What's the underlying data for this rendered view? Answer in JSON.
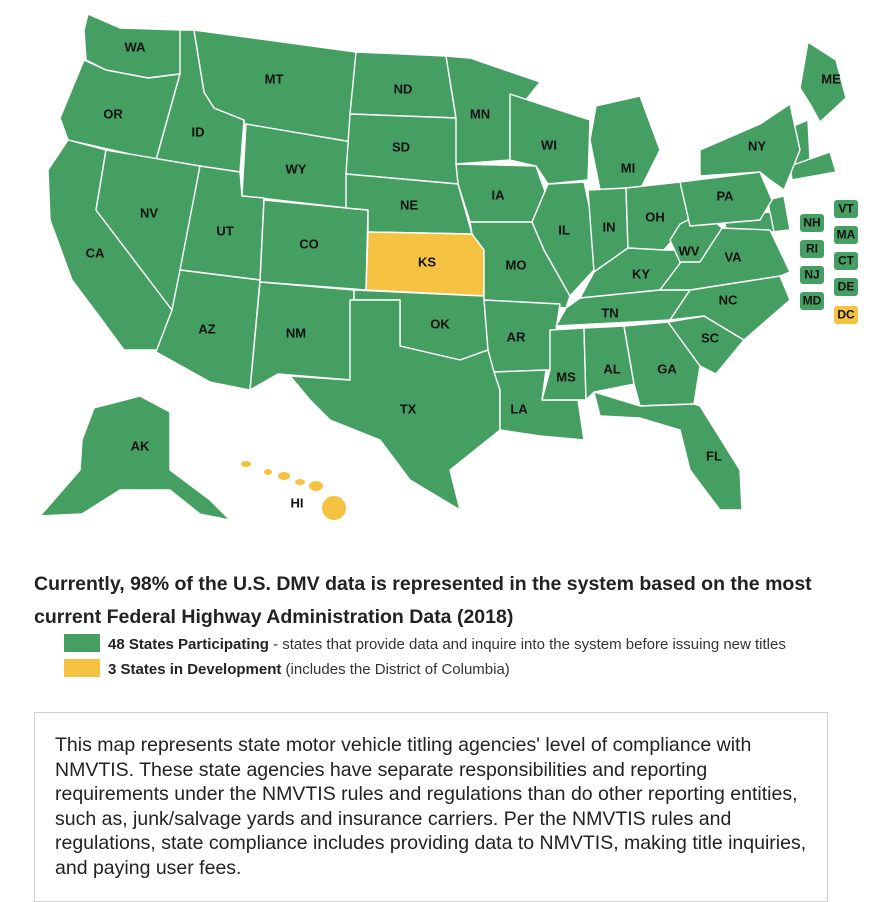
{
  "colors": {
    "participating": "#469f62",
    "development": "#f5c242",
    "border": "#ffffff"
  },
  "map": {
    "states": [
      {
        "code": "WA",
        "status": "participating"
      },
      {
        "code": "OR",
        "status": "participating"
      },
      {
        "code": "CA",
        "status": "participating"
      },
      {
        "code": "ID",
        "status": "participating"
      },
      {
        "code": "NV",
        "status": "participating"
      },
      {
        "code": "MT",
        "status": "participating"
      },
      {
        "code": "WY",
        "status": "participating"
      },
      {
        "code": "UT",
        "status": "participating"
      },
      {
        "code": "AZ",
        "status": "participating"
      },
      {
        "code": "CO",
        "status": "participating"
      },
      {
        "code": "NM",
        "status": "participating"
      },
      {
        "code": "ND",
        "status": "participating"
      },
      {
        "code": "SD",
        "status": "participating"
      },
      {
        "code": "NE",
        "status": "participating"
      },
      {
        "code": "KS",
        "status": "development"
      },
      {
        "code": "OK",
        "status": "participating"
      },
      {
        "code": "TX",
        "status": "participating"
      },
      {
        "code": "MN",
        "status": "participating"
      },
      {
        "code": "IA",
        "status": "participating"
      },
      {
        "code": "MO",
        "status": "participating"
      },
      {
        "code": "AR",
        "status": "participating"
      },
      {
        "code": "LA",
        "status": "participating"
      },
      {
        "code": "WI",
        "status": "participating"
      },
      {
        "code": "IL",
        "status": "participating"
      },
      {
        "code": "MI",
        "status": "participating"
      },
      {
        "code": "IN",
        "status": "participating"
      },
      {
        "code": "OH",
        "status": "participating"
      },
      {
        "code": "KY",
        "status": "participating"
      },
      {
        "code": "TN",
        "status": "participating"
      },
      {
        "code": "MS",
        "status": "participating"
      },
      {
        "code": "AL",
        "status": "participating"
      },
      {
        "code": "GA",
        "status": "participating"
      },
      {
        "code": "FL",
        "status": "participating"
      },
      {
        "code": "SC",
        "status": "participating"
      },
      {
        "code": "NC",
        "status": "participating"
      },
      {
        "code": "VA",
        "status": "participating"
      },
      {
        "code": "WV",
        "status": "participating"
      },
      {
        "code": "PA",
        "status": "participating"
      },
      {
        "code": "NY",
        "status": "participating"
      },
      {
        "code": "ME",
        "status": "participating"
      },
      {
        "code": "AK",
        "status": "participating"
      },
      {
        "code": "HI",
        "status": "development"
      }
    ],
    "small_states": [
      {
        "code": "VT",
        "status": "participating"
      },
      {
        "code": "NH",
        "status": "participating"
      },
      {
        "code": "MA",
        "status": "participating"
      },
      {
        "code": "RI",
        "status": "participating"
      },
      {
        "code": "CT",
        "status": "participating"
      },
      {
        "code": "NJ",
        "status": "participating"
      },
      {
        "code": "DE",
        "status": "participating"
      },
      {
        "code": "MD",
        "status": "participating"
      },
      {
        "code": "DC",
        "status": "development"
      }
    ]
  },
  "headline": "Currently, 98% of the U.S. DMV data is represented in the system based on the most current Federal Highway Administration Data (2018)",
  "legend": {
    "participating": {
      "label": "48 States Participating",
      "description": " - states that provide data and inquire into the system before issuing new titles"
    },
    "development": {
      "label": "3 States in Development",
      "description": " (includes the District of Columbia)"
    }
  },
  "info": "This map represents state motor vehicle titling agencies' level of compliance with NMVTIS. These state agencies have separate responsibilities and reporting requirements under the NMVTIS rules and regulations than do other reporting entities, such as, junk/salvage yards and insurance carriers. Per the NMVTIS rules and regulations, state compliance includes providing data to NMVTIS, making title inquiries, and paying user fees."
}
